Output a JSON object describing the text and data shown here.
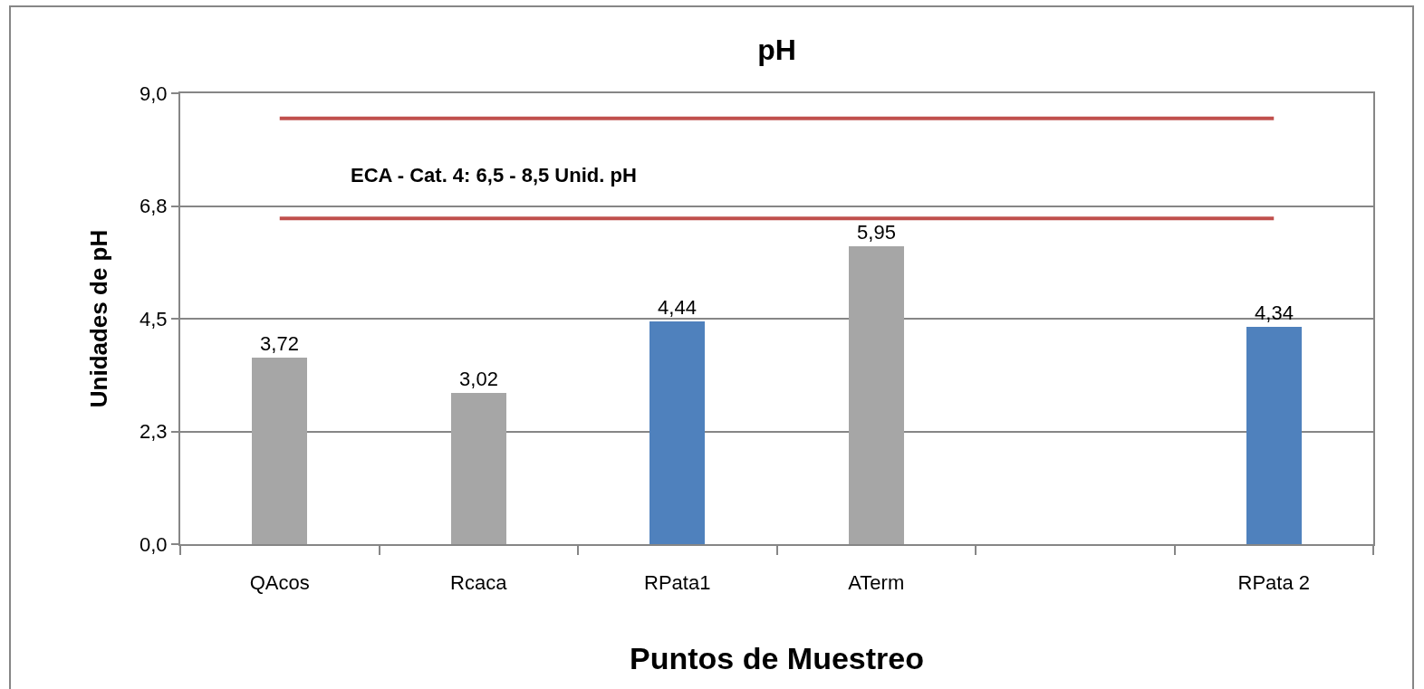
{
  "chart_data": {
    "type": "bar",
    "title": "pH",
    "xlabel": "Puntos de Muestreo",
    "ylabel": "Unidades de pH",
    "categories": [
      "QAcos",
      "Rcaca",
      "RPata1",
      "ATerm",
      null,
      "RPata 2"
    ],
    "values": [
      3.72,
      3.02,
      4.44,
      5.95,
      null,
      4.34
    ],
    "colors": [
      "#a6a6a6",
      "#a6a6a6",
      "#4f81bd",
      "#a6a6a6",
      null,
      "#4f81bd"
    ],
    "value_labels": [
      "3,72",
      "3,02",
      "4,44",
      "5,95",
      null,
      "4,34"
    ],
    "ylim": [
      0,
      9
    ],
    "yticks": [
      {
        "value": 0,
        "label": "0,0"
      },
      {
        "value": 2.25,
        "label": "2,3"
      },
      {
        "value": 4.5,
        "label": "4,5"
      },
      {
        "value": 6.75,
        "label": "6,8"
      },
      {
        "value": 9,
        "label": "9,0"
      }
    ],
    "grid": "y",
    "ref_lines": [
      {
        "axis": "y",
        "value": 6.5,
        "color": "#c0504d"
      },
      {
        "axis": "y",
        "value": 8.5,
        "color": "#c0504d"
      }
    ],
    "annotations": [
      "ECA - Cat. 4: 6,5 - 8,5 Unid. pH"
    ]
  }
}
